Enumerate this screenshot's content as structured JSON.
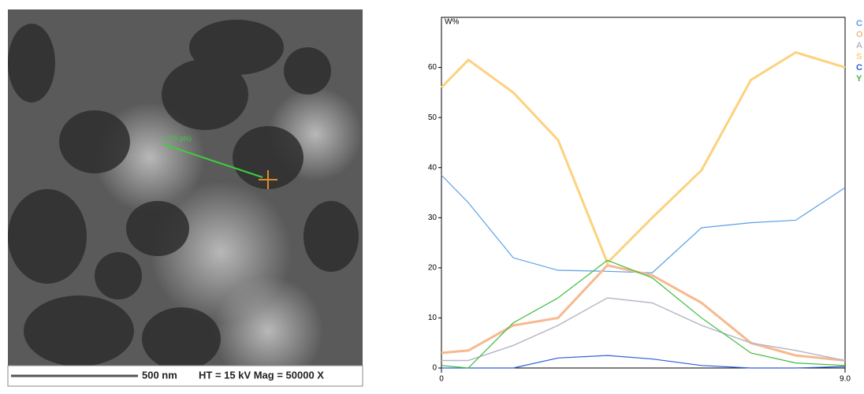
{
  "image": {
    "scan_label": "1 (10 pts)",
    "scale_bar": "500 nm",
    "info": "HT = 15 kV   Mag = 50000 X"
  },
  "chart_data": {
    "type": "line",
    "y_label": "W%",
    "x": [
      0,
      0.6,
      1.6,
      2.6,
      3.7,
      4.7,
      5.8,
      6.9,
      7.9,
      9.0
    ],
    "xlim": [
      0,
      9
    ],
    "xticks": [
      0,
      {
        "value": 9,
        "label": "9.0"
      }
    ],
    "ylim": [
      0,
      70
    ],
    "yticks": [
      0,
      10,
      20,
      30,
      40,
      50,
      60
    ],
    "series": [
      {
        "name": "C",
        "color": "#5aa0e6",
        "width": 1.2,
        "values": [
          38.5,
          33,
          22,
          19.5,
          19.3,
          19,
          28,
          29,
          29.5,
          36
        ]
      },
      {
        "name": "O",
        "color": "#f7b98f",
        "width": 3,
        "values": [
          3,
          3.5,
          8.5,
          10,
          20.5,
          18.5,
          13,
          5,
          2.5,
          1.5
        ]
      },
      {
        "name": "A",
        "color": "#b8b8c8",
        "width": 1.5,
        "values": [
          1.5,
          1.5,
          4.5,
          8.5,
          14,
          13,
          8.5,
          5,
          3.5,
          1.5
        ]
      },
      {
        "name": "S",
        "color": "#fcd27e",
        "width": 3,
        "values": [
          56,
          61.5,
          55,
          45.5,
          21,
          30,
          39.5,
          57.5,
          63,
          60
        ]
      },
      {
        "name": "C",
        "color": "#2a5fd6",
        "width": 1.2,
        "values": [
          0,
          0,
          0,
          2,
          2.5,
          1.8,
          0.5,
          0,
          0,
          0.3
        ]
      },
      {
        "name": "Y",
        "color": "#3dbb3d",
        "width": 1.2,
        "values": [
          0.5,
          0,
          9,
          14,
          21.5,
          18,
          10,
          3,
          1,
          0.5
        ]
      }
    ]
  }
}
